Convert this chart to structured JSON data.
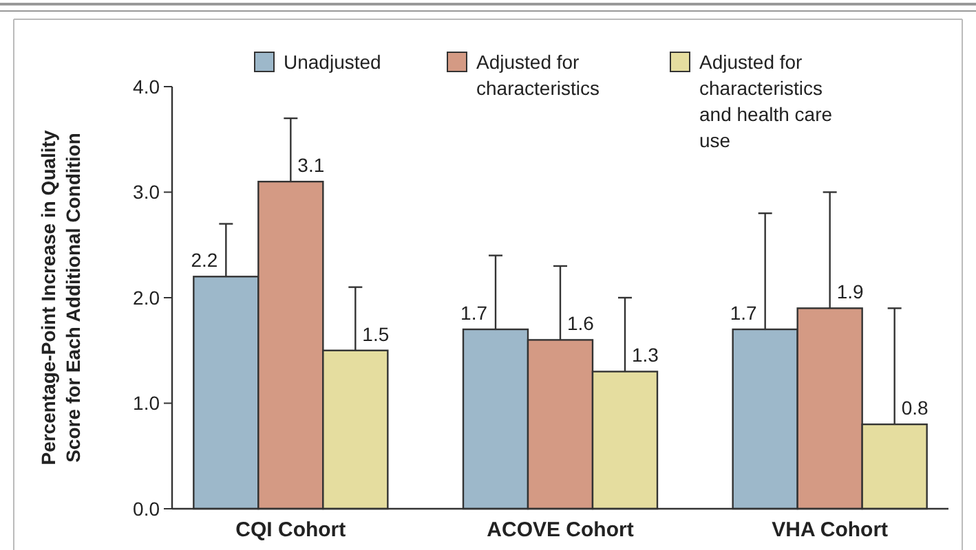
{
  "chart_data": {
    "type": "bar",
    "ylabel": "Percentage-Point Increase in Quality Score for Each Additional Condition",
    "categories": [
      "CQI Cohort",
      "ACOVE Cohort",
      "VHA Cohort"
    ],
    "series": [
      {
        "name": "Unadjusted",
        "color": "#9db8ca",
        "values": [
          2.2,
          1.7,
          1.7
        ],
        "errors": [
          [
            2.2,
            2.7
          ],
          [
            1.7,
            2.4
          ],
          [
            1.7,
            2.8
          ]
        ]
      },
      {
        "name": "Adjusted for characteristics",
        "color": "#d49a84",
        "values": [
          3.1,
          1.6,
          1.9
        ],
        "errors": [
          [
            3.1,
            3.7
          ],
          [
            1.6,
            2.3
          ],
          [
            1.9,
            3.0
          ]
        ]
      },
      {
        "name": "Adjusted for characteristics and health care use",
        "color": "#e5dd9f",
        "values": [
          1.5,
          1.3,
          0.8
        ],
        "errors": [
          [
            1.5,
            2.1
          ],
          [
            1.3,
            2.0
          ],
          [
            0.8,
            1.9
          ]
        ]
      }
    ],
    "ylim": [
      0,
      4
    ],
    "yticks": [
      {
        "value": 0,
        "label": "0.0"
      },
      {
        "value": 1,
        "label": "1.0"
      },
      {
        "value": 2,
        "label": "2.0"
      },
      {
        "value": 3,
        "label": "3.0"
      },
      {
        "value": 4,
        "label": "4.0"
      }
    ],
    "data_labels": true,
    "legend": "top"
  }
}
